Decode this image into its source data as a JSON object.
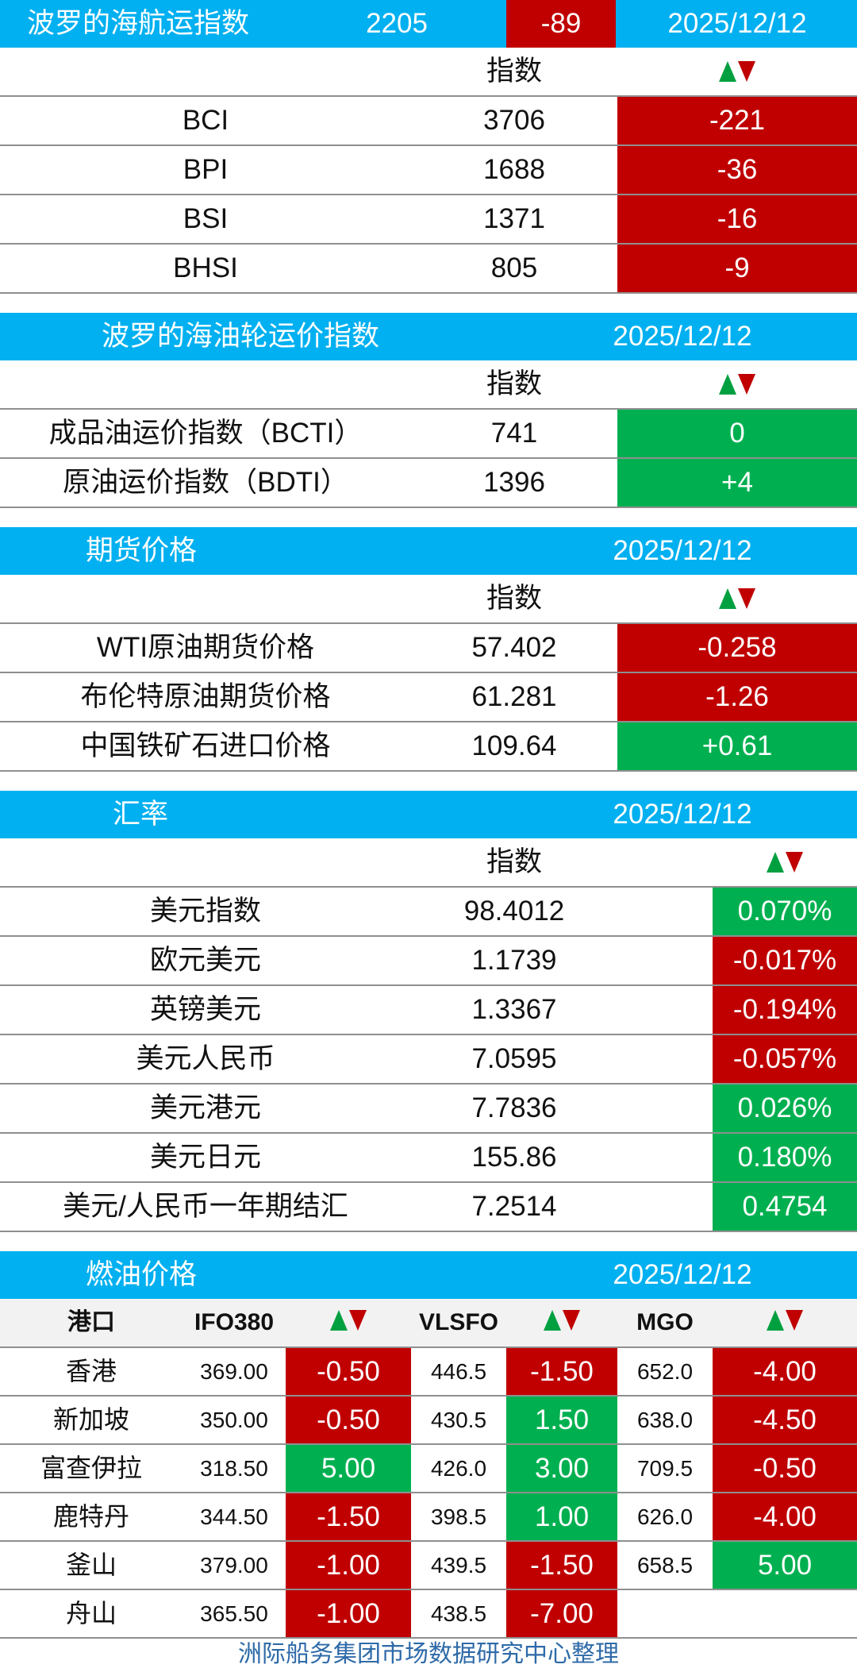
{
  "baltic_dry": {
    "title": "波罗的海航运指数",
    "value": "2205",
    "change": "-89",
    "date": "2025/12/12",
    "col_index": "指数",
    "rows": [
      {
        "name": "BCI",
        "value": "3706",
        "change": "-221",
        "status": "down"
      },
      {
        "name": "BPI",
        "value": "1688",
        "change": "-36",
        "status": "down"
      },
      {
        "name": "BSI",
        "value": "1371",
        "change": "-16",
        "status": "down"
      },
      {
        "name": "BHSI",
        "value": "805",
        "change": "-9",
        "status": "down"
      }
    ]
  },
  "tanker": {
    "title": "波罗的海油轮运价指数",
    "date": "2025/12/12",
    "col_index": "指数",
    "rows": [
      {
        "name": "成品油运价指数（BCTI）",
        "value": "741",
        "change": "0",
        "status": "up"
      },
      {
        "name": "原油运价指数（BDTI）",
        "value": "1396",
        "change": "+4",
        "status": "up"
      }
    ]
  },
  "futures": {
    "title": "期货价格",
    "date": "2025/12/12",
    "col_index": "指数",
    "rows": [
      {
        "name": "WTI原油期货价格",
        "value": "57.402",
        "change": "-0.258",
        "status": "down"
      },
      {
        "name": "布伦特原油期货价格",
        "value": "61.281",
        "change": "-1.26",
        "status": "down"
      },
      {
        "name": "中国铁矿石进口价格",
        "value": "109.64",
        "change": "+0.61",
        "status": "up"
      }
    ]
  },
  "fx": {
    "title": "汇率",
    "date": "2025/12/12",
    "col_index": "指数",
    "rows": [
      {
        "name": "美元指数",
        "value": "98.4012",
        "change": "0.070%",
        "status": "up"
      },
      {
        "name": "欧元美元",
        "value": "1.1739",
        "change": "-0.017%",
        "status": "down"
      },
      {
        "name": "英镑美元",
        "value": "1.3367",
        "change": "-0.194%",
        "status": "down"
      },
      {
        "name": "美元人民币",
        "value": "7.0595",
        "change": "-0.057%",
        "status": "down"
      },
      {
        "name": "美元港元",
        "value": "7.7836",
        "change": "0.026%",
        "status": "up"
      },
      {
        "name": "美元日元",
        "value": "155.86",
        "change": "0.180%",
        "status": "up"
      },
      {
        "name": "美元/人民币一年期结汇",
        "value": "7.2514",
        "change": "0.4754",
        "status": "up"
      }
    ]
  },
  "fuel": {
    "title": "燃油价格",
    "date": "2025/12/12",
    "headers": {
      "port": "港口",
      "ifo": "IFO380",
      "vlsfo": "VLSFO",
      "mgo": "MGO"
    },
    "rows": [
      {
        "port": "香港",
        "ifo": "369.00",
        "ifo_chg": "-0.50",
        "ifo_s": "down",
        "vlsfo": "446.5",
        "vlsfo_chg": "-1.50",
        "vlsfo_s": "down",
        "mgo": "652.0",
        "mgo_chg": "-4.00",
        "mgo_s": "down"
      },
      {
        "port": "新加坡",
        "ifo": "350.00",
        "ifo_chg": "-0.50",
        "ifo_s": "down",
        "vlsfo": "430.5",
        "vlsfo_chg": "1.50",
        "vlsfo_s": "up",
        "mgo": "638.0",
        "mgo_chg": "-4.50",
        "mgo_s": "down"
      },
      {
        "port": "富查伊拉",
        "ifo": "318.50",
        "ifo_chg": "5.00",
        "ifo_s": "up",
        "vlsfo": "426.0",
        "vlsfo_chg": "3.00",
        "vlsfo_s": "up",
        "mgo": "709.5",
        "mgo_chg": "-0.50",
        "mgo_s": "down"
      },
      {
        "port": "鹿特丹",
        "ifo": "344.50",
        "ifo_chg": "-1.50",
        "ifo_s": "down",
        "vlsfo": "398.5",
        "vlsfo_chg": "1.00",
        "vlsfo_s": "up",
        "mgo": "626.0",
        "mgo_chg": "-4.00",
        "mgo_s": "down"
      },
      {
        "port": "釜山",
        "ifo": "379.00",
        "ifo_chg": "-1.00",
        "ifo_s": "down",
        "vlsfo": "439.5",
        "vlsfo_chg": "-1.50",
        "vlsfo_s": "down",
        "mgo": "658.5",
        "mgo_chg": "5.00",
        "mgo_s": "up"
      },
      {
        "port": "舟山",
        "ifo": "365.50",
        "ifo_chg": "-1.00",
        "ifo_s": "down",
        "vlsfo": "438.5",
        "vlsfo_chg": "-7.00",
        "vlsfo_s": "down",
        "mgo": "",
        "mgo_chg": "",
        "mgo_s": "none"
      }
    ]
  },
  "footer": "洲际船务集团市场数据研究中心整理",
  "colors": {
    "header_bg": "#00b0f0",
    "up": "#00b050",
    "down": "#c00000"
  },
  "icons": {
    "trend": "up-down-arrows-icon"
  }
}
